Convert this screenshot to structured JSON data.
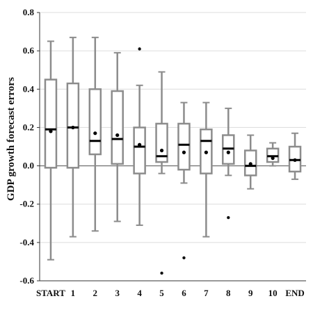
{
  "chart_data": {
    "type": "box",
    "title": "",
    "xlabel": "",
    "ylabel": "GDP growth forecast errors",
    "ylim": [
      -0.6,
      0.8
    ],
    "yticks": [
      "0.8",
      "0.6",
      "0.4",
      "0.2",
      "0.0",
      "-0.2",
      "-0.4",
      "-0.6"
    ],
    "ytick_values": [
      0.8,
      0.6,
      0.4,
      0.2,
      0.0,
      -0.2,
      -0.4,
      -0.6
    ],
    "reference_line": 0.0,
    "grid": "horizontal",
    "colors": {
      "box": "#8c8c8c",
      "median": "#000000",
      "mean": "#000000",
      "grid": "#dcdcdc",
      "zero_line": "#555555"
    },
    "categories": [
      "START",
      "1",
      "2",
      "3",
      "4",
      "5",
      "6",
      "7",
      "8",
      "9",
      "10",
      "END"
    ],
    "boxes": [
      {
        "whisker_low": -0.49,
        "q1": -0.01,
        "median": 0.19,
        "q3": 0.45,
        "whisker_high": 0.65,
        "mean": 0.18,
        "outliers": []
      },
      {
        "whisker_low": -0.37,
        "q1": -0.01,
        "median": 0.2,
        "q3": 0.43,
        "whisker_high": 0.67,
        "mean": 0.2,
        "outliers": []
      },
      {
        "whisker_low": -0.34,
        "q1": 0.06,
        "median": 0.13,
        "q3": 0.4,
        "whisker_high": 0.67,
        "mean": 0.17,
        "outliers": []
      },
      {
        "whisker_low": -0.29,
        "q1": 0.01,
        "median": 0.14,
        "q3": 0.39,
        "whisker_high": 0.59,
        "mean": 0.16,
        "outliers": []
      },
      {
        "whisker_low": -0.31,
        "q1": -0.04,
        "median": 0.1,
        "q3": 0.2,
        "whisker_high": 0.42,
        "mean": 0.11,
        "outliers": [
          0.61
        ]
      },
      {
        "whisker_low": -0.04,
        "q1": 0.02,
        "median": 0.05,
        "q3": 0.22,
        "whisker_high": 0.49,
        "mean": 0.08,
        "outliers": [
          -0.56
        ]
      },
      {
        "whisker_low": -0.09,
        "q1": -0.02,
        "median": 0.11,
        "q3": 0.22,
        "whisker_high": 0.33,
        "mean": 0.07,
        "outliers": [
          -0.48
        ]
      },
      {
        "whisker_low": -0.37,
        "q1": -0.04,
        "median": 0.13,
        "q3": 0.19,
        "whisker_high": 0.33,
        "mean": 0.07,
        "outliers": []
      },
      {
        "whisker_low": -0.05,
        "q1": 0.01,
        "median": 0.09,
        "q3": 0.16,
        "whisker_high": 0.3,
        "mean": 0.07,
        "outliers": [
          -0.27
        ]
      },
      {
        "whisker_low": -0.12,
        "q1": -0.05,
        "median": 0.0,
        "q3": 0.08,
        "whisker_high": 0.16,
        "mean": 0.01,
        "outliers": []
      },
      {
        "whisker_low": 0.0,
        "q1": 0.02,
        "median": 0.05,
        "q3": 0.09,
        "whisker_high": 0.12,
        "mean": 0.04,
        "outliers": []
      },
      {
        "whisker_low": -0.07,
        "q1": -0.03,
        "median": 0.03,
        "q3": 0.1,
        "whisker_high": 0.17,
        "mean": 0.03,
        "outliers": []
      }
    ]
  }
}
